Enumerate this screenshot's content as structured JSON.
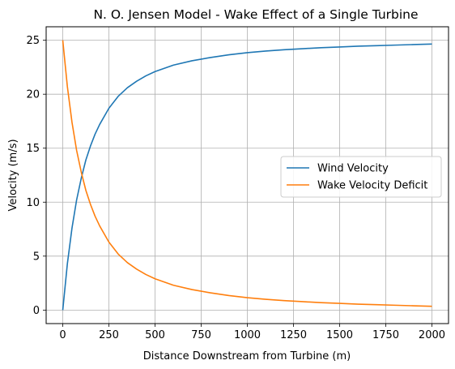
{
  "chart_data": {
    "type": "line",
    "title": "N. O. Jensen Model - Wake Effect of a Single Turbine",
    "xlabel": "Distance Downstream from Turbine (m)",
    "ylabel": "Velocity (m/s)",
    "xlim": [
      -90,
      2090
    ],
    "ylim": [
      -1.25,
      26.25
    ],
    "xticks": [
      0,
      250,
      500,
      750,
      1000,
      1250,
      1500,
      1750,
      2000
    ],
    "yticks": [
      0,
      5,
      10,
      15,
      20,
      25
    ],
    "grid": true,
    "legend_position": "center-right",
    "series": [
      {
        "name": "Wind Velocity",
        "color": "#1f77b4",
        "x": [
          0,
          25,
          50,
          75,
          100,
          125,
          150,
          175,
          200,
          250,
          300,
          350,
          400,
          450,
          500,
          600,
          700,
          800,
          900,
          1000,
          1100,
          1200,
          1300,
          1400,
          1500,
          1600,
          1700,
          1800,
          1900,
          2000
        ],
        "y": [
          0.0,
          4.3,
          7.6,
          10.2,
          12.2,
          13.9,
          15.2,
          16.3,
          17.2,
          18.7,
          19.8,
          20.6,
          21.2,
          21.7,
          22.1,
          22.7,
          23.1,
          23.4,
          23.65,
          23.85,
          24.0,
          24.12,
          24.22,
          24.31,
          24.38,
          24.45,
          24.5,
          24.55,
          24.6,
          24.65
        ]
      },
      {
        "name": "Wake Velocity Deficit",
        "color": "#ff7f0e",
        "x": [
          0,
          25,
          50,
          75,
          100,
          125,
          150,
          175,
          200,
          250,
          300,
          350,
          400,
          450,
          500,
          600,
          700,
          800,
          900,
          1000,
          1100,
          1200,
          1300,
          1400,
          1500,
          1600,
          1700,
          1800,
          1900,
          2000
        ],
        "y": [
          25.0,
          20.7,
          17.4,
          14.8,
          12.8,
          11.1,
          9.8,
          8.7,
          7.8,
          6.3,
          5.2,
          4.4,
          3.8,
          3.3,
          2.9,
          2.3,
          1.9,
          1.6,
          1.35,
          1.15,
          1.0,
          0.88,
          0.78,
          0.69,
          0.62,
          0.55,
          0.5,
          0.45,
          0.4,
          0.35
        ]
      }
    ]
  }
}
